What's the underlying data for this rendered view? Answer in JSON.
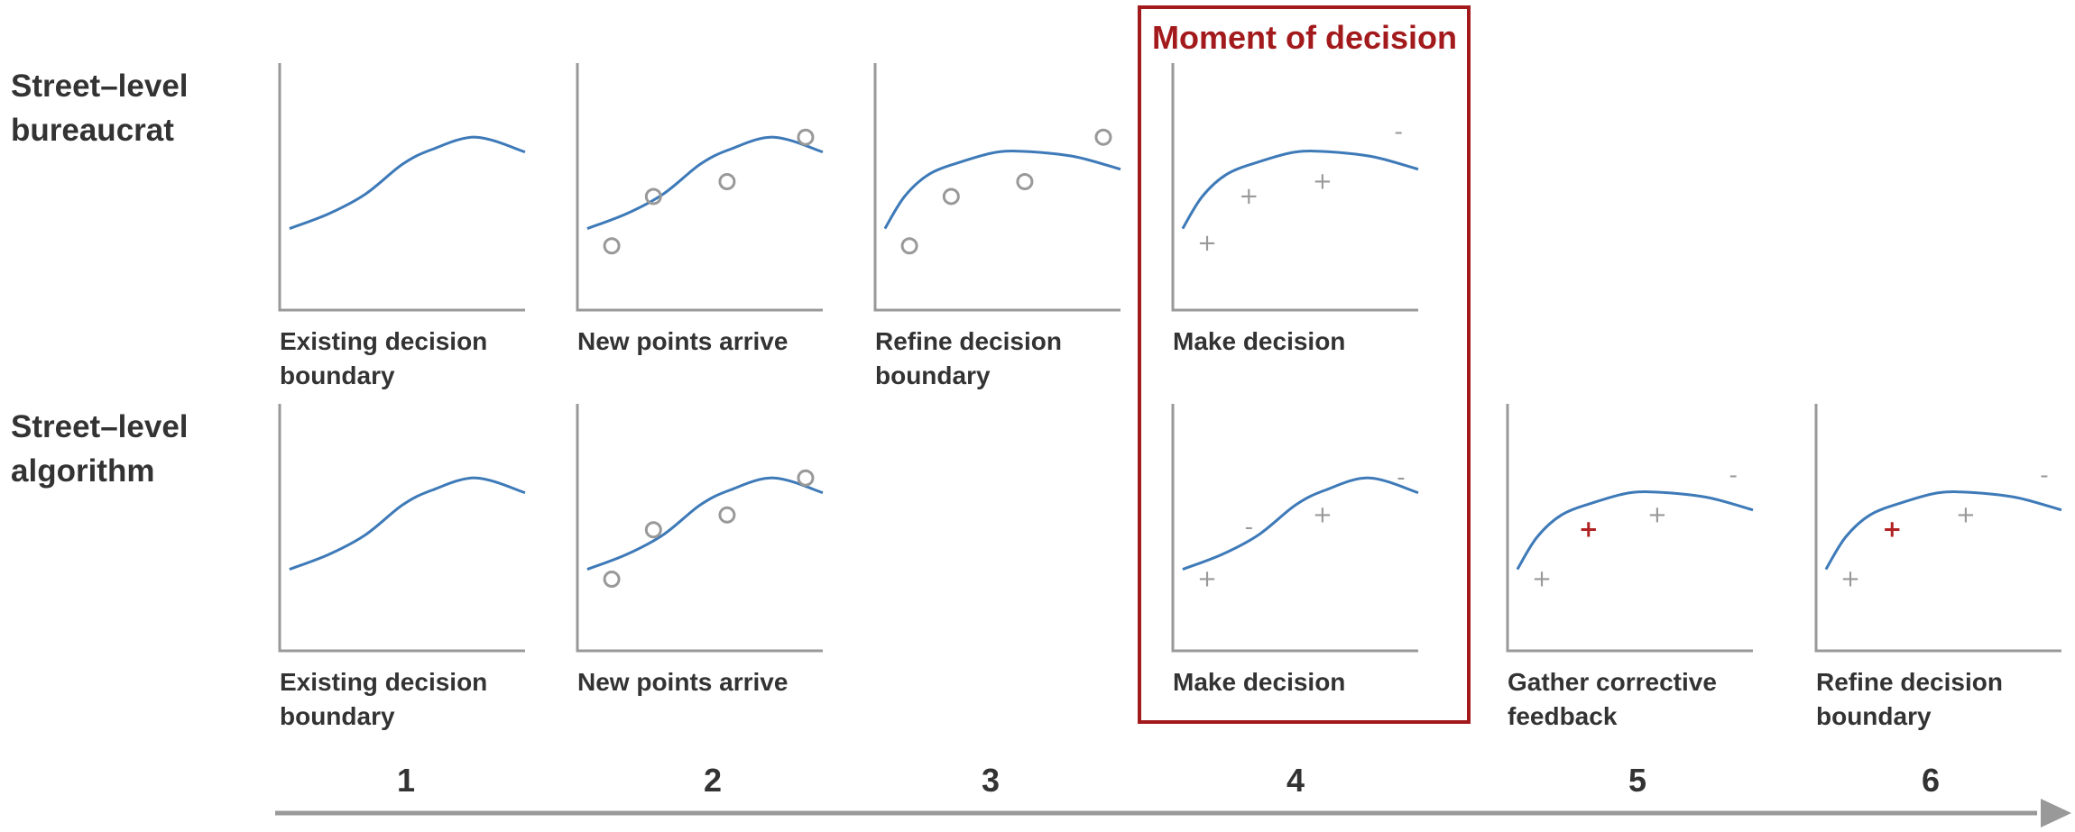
{
  "rows": [
    {
      "id": "bureaucrat",
      "label_lines": [
        "Street–level",
        "bureaucrat"
      ]
    },
    {
      "id": "algorithm",
      "label_lines": [
        "Street–level",
        "algorithm"
      ]
    }
  ],
  "highlight": {
    "label": "Moment of decision",
    "color": "#a31a1d"
  },
  "steps": [
    "1",
    "2",
    "3",
    "4",
    "5",
    "6"
  ],
  "colors": {
    "curve": "#3e7ab8",
    "axis": "#999999",
    "text": "#333333",
    "mark": "#999999",
    "corrective": "#b22222"
  },
  "panels": [
    {
      "row": 0,
      "col": 0,
      "name": "bureaucrat-existing-boundary",
      "caption_lines": [
        "Existing decision",
        "boundary"
      ],
      "curve": "s",
      "points": []
    },
    {
      "row": 0,
      "col": 1,
      "name": "bureaucrat-new-points",
      "caption_lines": [
        "New points arrive"
      ],
      "curve": "s",
      "points": [
        {
          "type": "circle",
          "x": 0.14,
          "y": 0.26
        },
        {
          "type": "circle",
          "x": 0.31,
          "y": 0.46
        },
        {
          "type": "circle",
          "x": 0.61,
          "y": 0.52
        },
        {
          "type": "circle",
          "x": 0.93,
          "y": 0.7
        }
      ]
    },
    {
      "row": 0,
      "col": 2,
      "name": "bureaucrat-refine-boundary",
      "caption_lines": [
        "Refine decision",
        "boundary"
      ],
      "curve": "concave",
      "points": [
        {
          "type": "circle",
          "x": 0.14,
          "y": 0.26
        },
        {
          "type": "circle",
          "x": 0.31,
          "y": 0.46
        },
        {
          "type": "circle",
          "x": 0.61,
          "y": 0.52
        },
        {
          "type": "circle",
          "x": 0.93,
          "y": 0.7
        }
      ]
    },
    {
      "row": 0,
      "col": 3,
      "name": "bureaucrat-make-decision",
      "caption_lines": [
        "Make decision"
      ],
      "curve": "concave",
      "points": [
        {
          "type": "plus",
          "label": "+",
          "x": 0.14,
          "y": 0.27
        },
        {
          "type": "plus",
          "label": "+",
          "x": 0.31,
          "y": 0.46
        },
        {
          "type": "plus",
          "label": "+",
          "x": 0.61,
          "y": 0.52
        },
        {
          "type": "minus",
          "label": "-",
          "x": 0.92,
          "y": 0.72
        }
      ]
    },
    {
      "row": 1,
      "col": 0,
      "name": "algorithm-existing-boundary",
      "caption_lines": [
        "Existing decision",
        "boundary"
      ],
      "curve": "s",
      "points": []
    },
    {
      "row": 1,
      "col": 1,
      "name": "algorithm-new-points",
      "caption_lines": [
        "New points arrive"
      ],
      "curve": "s",
      "points": [
        {
          "type": "circle",
          "x": 0.14,
          "y": 0.29
        },
        {
          "type": "circle",
          "x": 0.31,
          "y": 0.49
        },
        {
          "type": "circle",
          "x": 0.61,
          "y": 0.55
        },
        {
          "type": "circle",
          "x": 0.93,
          "y": 0.7
        }
      ]
    },
    {
      "row": 1,
      "col": 3,
      "name": "algorithm-make-decision",
      "caption_lines": [
        "Make decision"
      ],
      "curve": "s",
      "points": [
        {
          "type": "plus",
          "label": "+",
          "x": 0.14,
          "y": 0.29
        },
        {
          "type": "minus",
          "label": "-",
          "x": 0.31,
          "y": 0.5
        },
        {
          "type": "plus",
          "label": "+",
          "x": 0.61,
          "y": 0.55
        },
        {
          "type": "minus",
          "label": "-",
          "x": 0.93,
          "y": 0.7
        }
      ]
    },
    {
      "row": 1,
      "col": 4,
      "name": "algorithm-corrective-feedback",
      "caption_lines": [
        "Gather corrective",
        "feedback"
      ],
      "curve": "concave",
      "points": [
        {
          "type": "plus",
          "label": "+",
          "x": 0.14,
          "y": 0.29
        },
        {
          "type": "plus-red",
          "label": "+",
          "x": 0.33,
          "y": 0.49
        },
        {
          "type": "plus",
          "label": "+",
          "x": 0.61,
          "y": 0.55
        },
        {
          "type": "minus",
          "label": "-",
          "x": 0.92,
          "y": 0.71
        }
      ]
    },
    {
      "row": 1,
      "col": 5,
      "name": "algorithm-refine-boundary",
      "caption_lines": [
        "Refine decision",
        "boundary"
      ],
      "curve": "concave",
      "points": [
        {
          "type": "plus",
          "label": "+",
          "x": 0.14,
          "y": 0.29
        },
        {
          "type": "plus-red",
          "label": "+",
          "x": 0.31,
          "y": 0.49
        },
        {
          "type": "plus",
          "label": "+",
          "x": 0.61,
          "y": 0.55
        },
        {
          "type": "minus",
          "label": "-",
          "x": 0.93,
          "y": 0.71
        }
      ]
    }
  ]
}
